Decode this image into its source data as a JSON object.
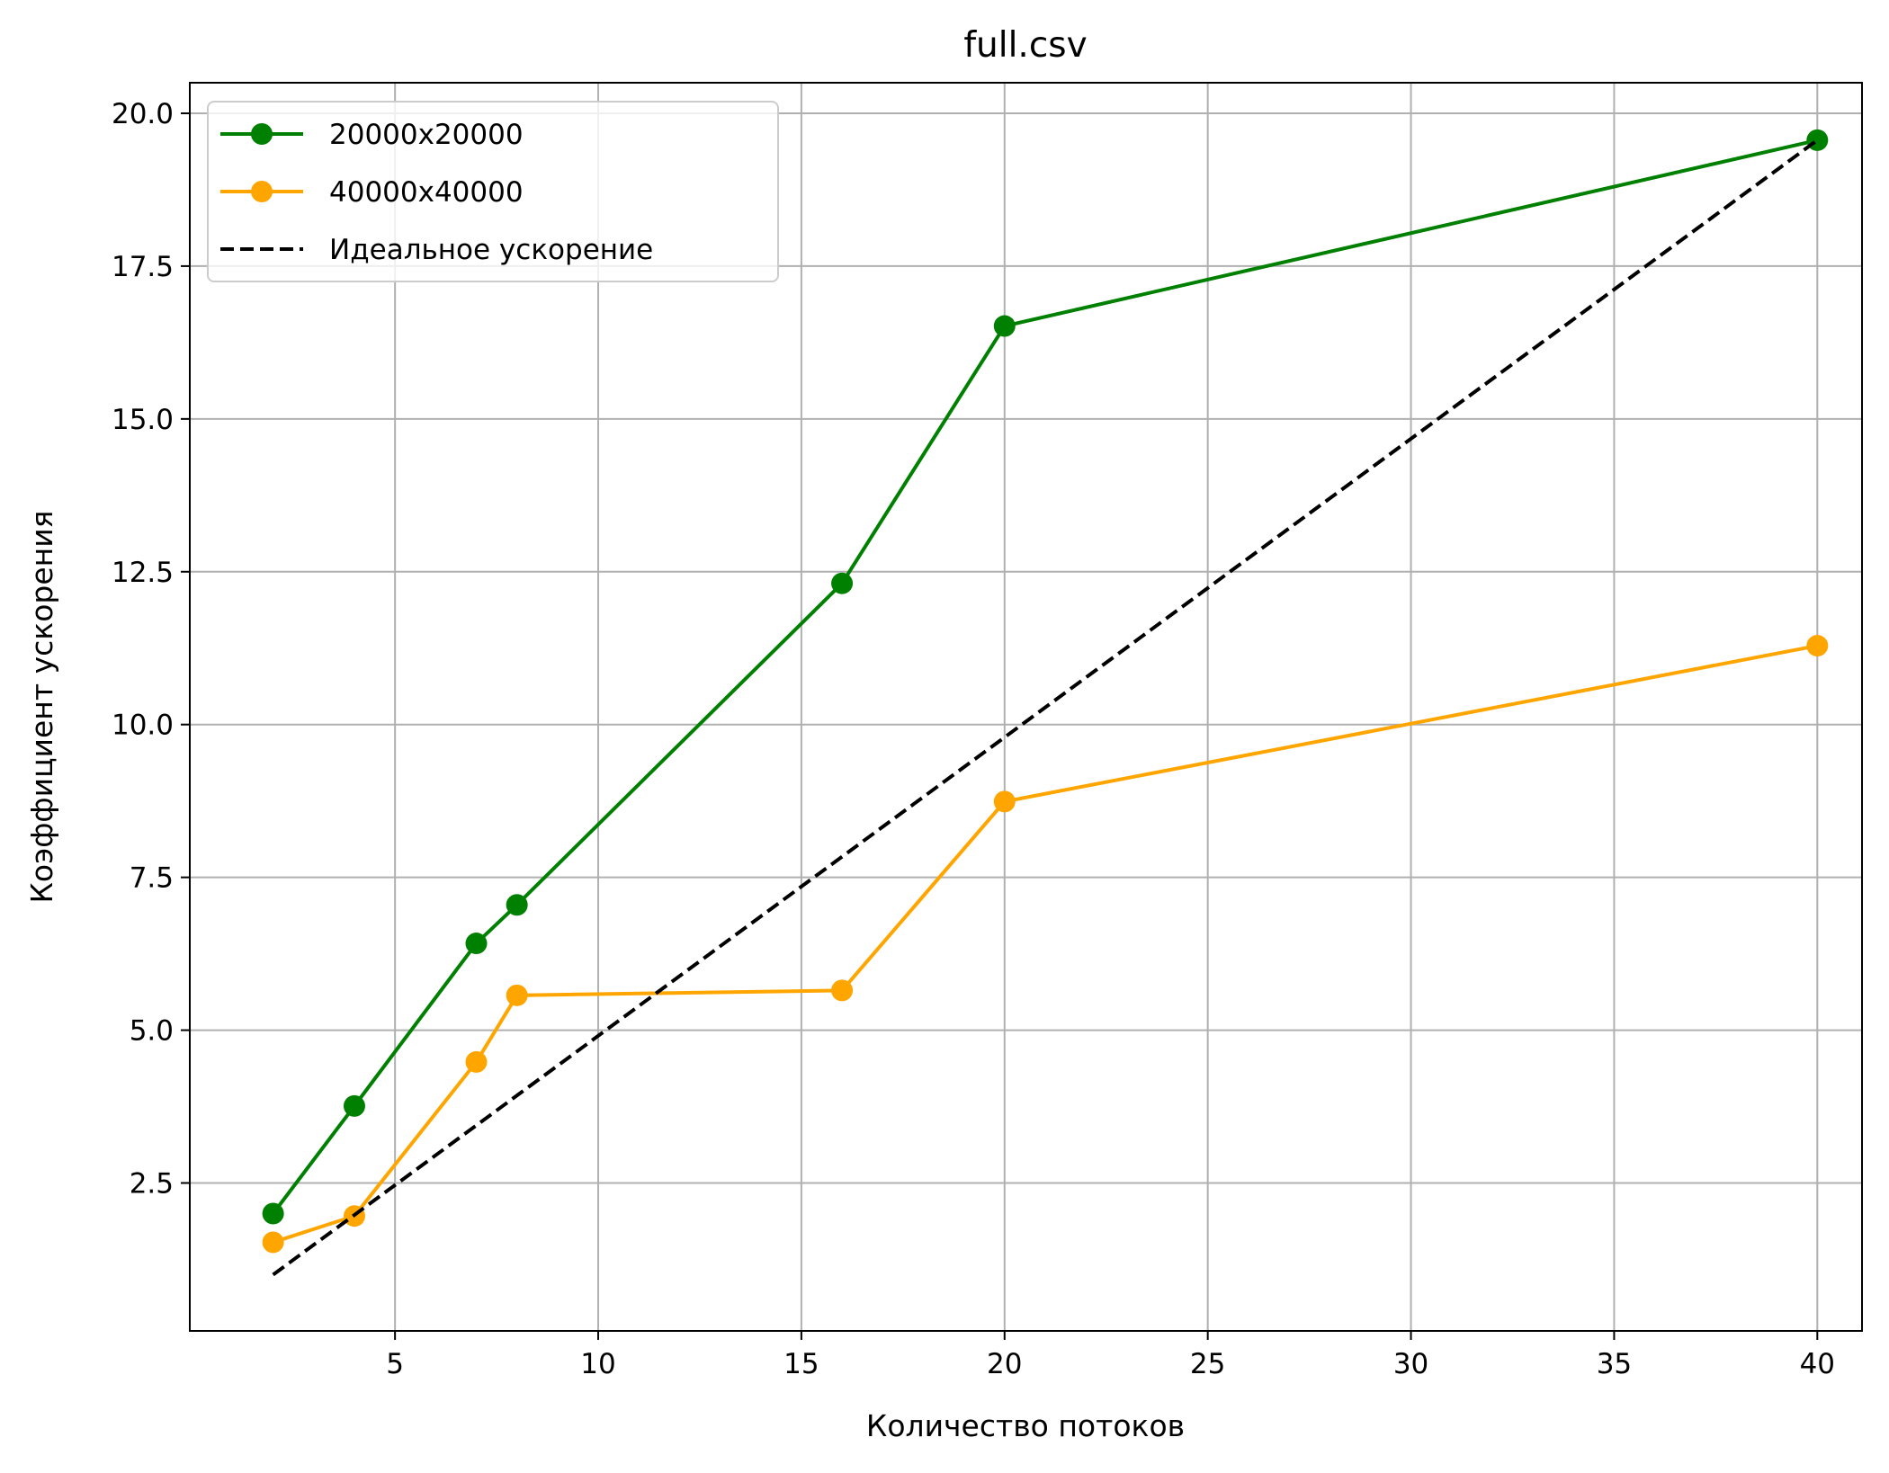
{
  "chart_data": {
    "type": "line",
    "title": "full.csv",
    "xlabel": "Количество потоков",
    "ylabel": "Коэффициент ускорения",
    "xlim": [
      -0.05,
      41.1
    ],
    "ylim": [
      0.08,
      20.5
    ],
    "xticks": [
      5,
      10,
      15,
      20,
      25,
      30,
      35,
      40
    ],
    "yticks": [
      2.5,
      5.0,
      7.5,
      10.0,
      12.5,
      15.0,
      17.5,
      20.0
    ],
    "xtick_labels": [
      "5",
      "10",
      "15",
      "20",
      "25",
      "30",
      "35",
      "40"
    ],
    "ytick_labels": [
      "2.5",
      "5.0",
      "7.5",
      "10.0",
      "12.5",
      "15.0",
      "17.5",
      "20.0"
    ],
    "grid": true,
    "legend_position": "top-left",
    "series": [
      {
        "name": "20000x20000",
        "color": "#008000",
        "style": "solid",
        "marker": "circle",
        "x": [
          2,
          4,
          7,
          8,
          16,
          20,
          40
        ],
        "y": [
          2.0,
          3.76,
          6.42,
          7.05,
          12.31,
          16.52,
          19.56
        ]
      },
      {
        "name": "40000x40000",
        "color": "#FFA500",
        "style": "solid",
        "marker": "circle",
        "x": [
          2,
          4,
          7,
          8,
          16,
          20,
          40
        ],
        "y": [
          1.53,
          1.96,
          4.48,
          5.57,
          5.65,
          8.74,
          11.29
        ]
      },
      {
        "name": "Идеальное ускорение",
        "color": "#000000",
        "style": "dashed",
        "marker": "none",
        "x": [
          2,
          40
        ],
        "y": [
          1.0,
          19.56
        ]
      }
    ]
  }
}
